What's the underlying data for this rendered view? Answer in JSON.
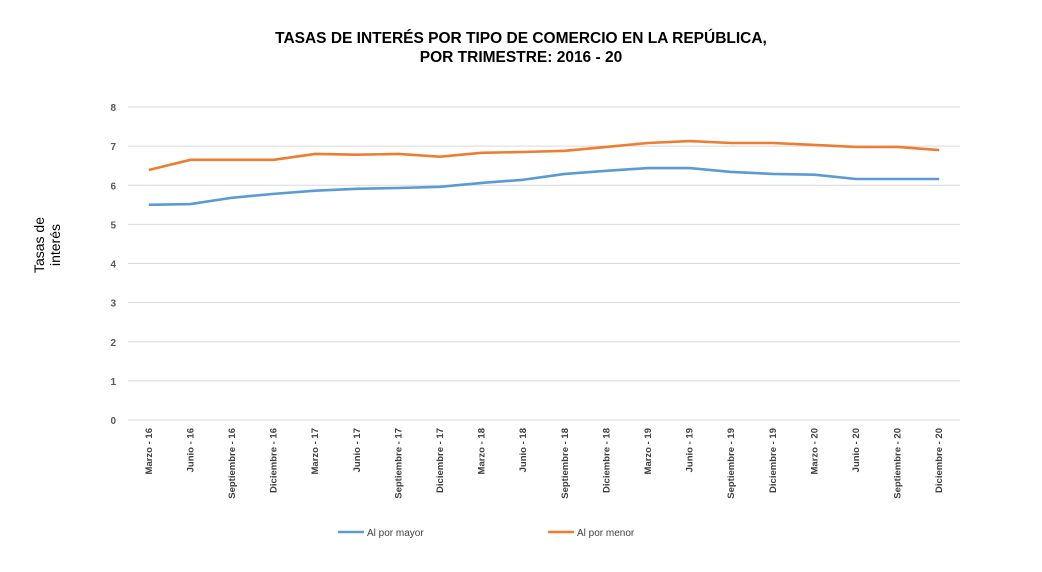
{
  "chart_data": {
    "type": "line",
    "title": [
      "TASAS DE INTERÉS POR TIPO DE COMERCIO EN LA REPÚBLICA,",
      "POR TRIMESTRE: 2016 - 20"
    ],
    "xlabel": "",
    "ylabel": [
      "Tasas de",
      "interés"
    ],
    "ylim": [
      0,
      8
    ],
    "yticks": [
      "0",
      "1",
      "2",
      "3",
      "4",
      "5",
      "6",
      "7",
      "8"
    ],
    "grid": true,
    "legend_position": "bottom",
    "categories": [
      "Marzo - 16",
      "Junio - 16",
      "Septiembre - 16",
      "Diciembre - 16",
      "Marzo - 17",
      "Junio - 17",
      "Septiembre - 17",
      "Diciembre - 17",
      "Marzo - 18",
      "Junio - 18",
      "Septiembre - 18",
      "Diciembre - 18",
      "Marzo - 19",
      "Junio - 19",
      "Septiembre - 19",
      "Diciembre - 19",
      "Marzo - 20",
      "Junio - 20",
      "Septiembre - 20",
      "Diciembre - 20"
    ],
    "series": [
      {
        "name": "Al por mayor",
        "color": "#5B9BD5",
        "values": [
          5.5,
          5.52,
          5.68,
          5.78,
          5.86,
          5.91,
          5.93,
          5.96,
          6.06,
          6.14,
          6.29,
          6.37,
          6.44,
          6.44,
          6.34,
          6.29,
          6.27,
          6.16,
          6.16,
          6.16
        ]
      },
      {
        "name": "Al por menor",
        "color": "#ED7D31",
        "values": [
          6.39,
          6.65,
          6.65,
          6.65,
          6.8,
          6.78,
          6.8,
          6.73,
          6.83,
          6.85,
          6.88,
          6.98,
          7.08,
          7.13,
          7.08,
          7.08,
          7.03,
          6.98,
          6.98,
          6.9
        ]
      }
    ]
  }
}
